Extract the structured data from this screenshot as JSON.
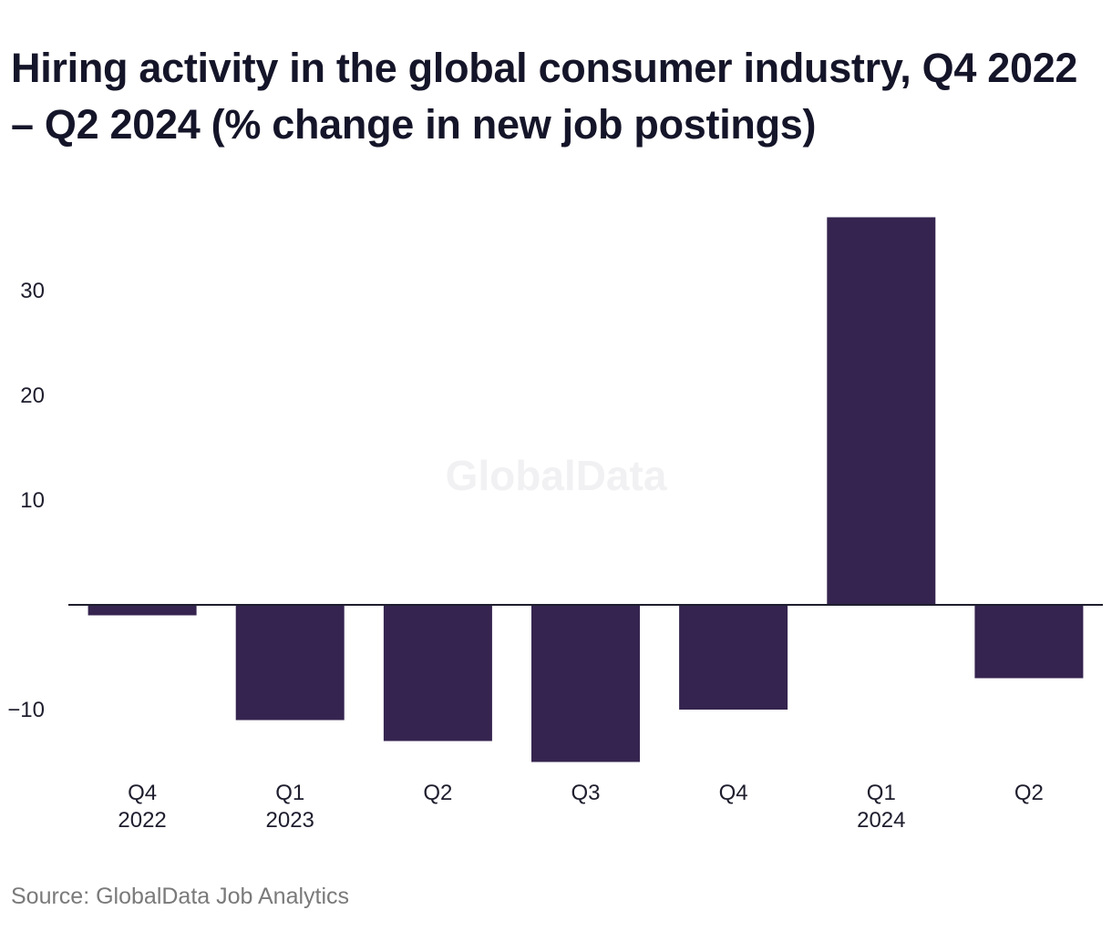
{
  "chart_data": {
    "type": "bar",
    "title": "Hiring activity in the global consumer industry, Q4 2022 – Q2 2024 (% change in new job postings)",
    "categories": [
      {
        "quarter": "Q4",
        "year": "2022"
      },
      {
        "quarter": "Q1",
        "year": "2023"
      },
      {
        "quarter": "Q2",
        "year": ""
      },
      {
        "quarter": "Q3",
        "year": ""
      },
      {
        "quarter": "Q4",
        "year": ""
      },
      {
        "quarter": "Q1",
        "year": "2024"
      },
      {
        "quarter": "Q2",
        "year": ""
      }
    ],
    "values": [
      -1,
      -11,
      -13,
      -15,
      -10,
      37,
      -7
    ],
    "yticks": [
      30,
      20,
      10,
      -10
    ],
    "ylim": [
      -15,
      37
    ],
    "xlabel": "",
    "ylabel": "",
    "bar_color": "#35244f",
    "grid": false,
    "watermark": "GlobalData"
  },
  "source": "Source: GlobalData Job Analytics"
}
